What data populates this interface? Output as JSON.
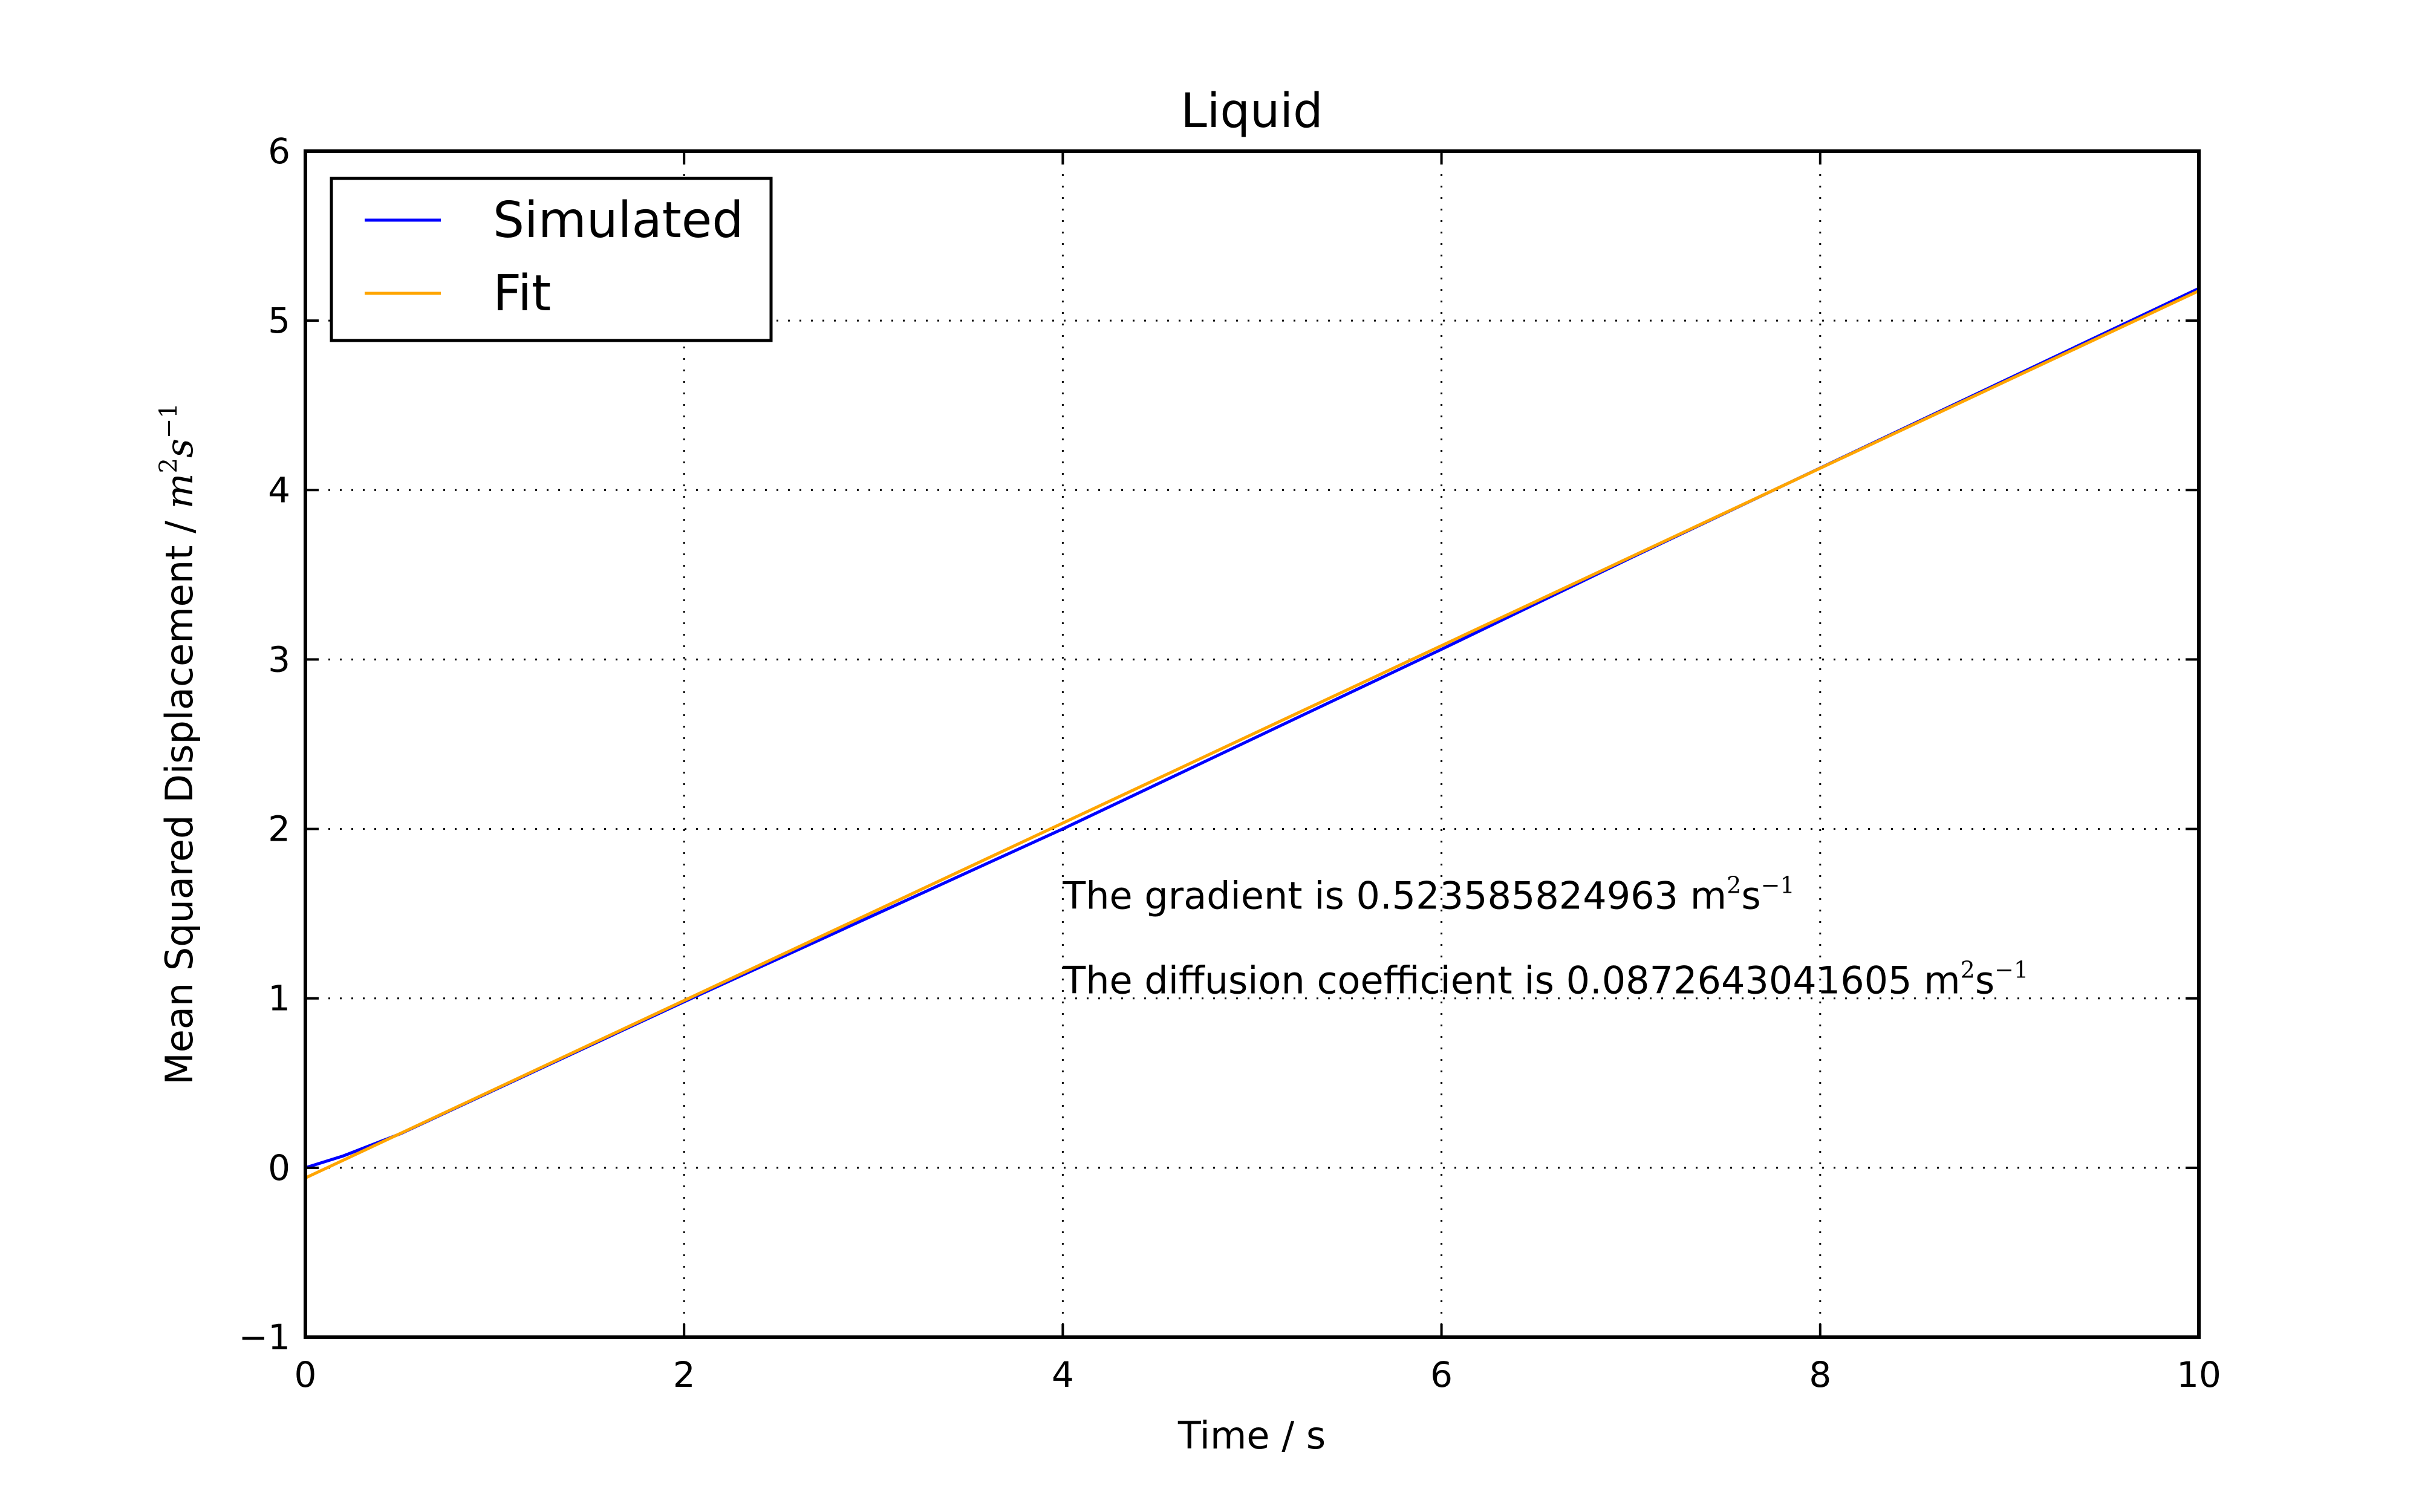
{
  "chart_data": {
    "type": "line",
    "title": "Liquid",
    "xlabel": "Time / s",
    "ylabel_text": "Mean Squared Displacement / ",
    "ylabel_unit": {
      "base1": "m",
      "exp1": "2",
      "base2": "s",
      "exp2": "−1"
    },
    "xlim": [
      0,
      10
    ],
    "ylim": [
      -1,
      6
    ],
    "xticks": [
      0,
      2,
      4,
      6,
      8,
      10
    ],
    "xtick_labels": [
      "0",
      "2",
      "4",
      "6",
      "8",
      "10"
    ],
    "yticks": [
      -1,
      0,
      1,
      2,
      3,
      4,
      5,
      6
    ],
    "ytick_labels": [
      "−1",
      "0",
      "1",
      "2",
      "3",
      "4",
      "5",
      "6"
    ],
    "grid": true,
    "legend_position": "upper-left",
    "series": [
      {
        "name": "Simulated",
        "color": "#0000ff",
        "x": [
          0,
          0.2,
          0.5,
          1,
          2,
          3,
          4,
          5,
          6,
          7,
          8,
          9,
          10
        ],
        "y": [
          0,
          0.07,
          0.2,
          0.46,
          0.98,
          1.49,
          2.0,
          2.53,
          3.06,
          3.6,
          4.13,
          4.66,
          5.19
        ]
      },
      {
        "name": "Fit",
        "color": "#ffa500",
        "x": [
          0,
          10
        ],
        "y": [
          -0.06,
          5.176
        ]
      }
    ],
    "annotations": [
      {
        "text": "The gradient is 0.523585824963 m",
        "sup1": "2",
        "mid": "s",
        "sup2": "−1",
        "x": 4,
        "y": 1.5
      },
      {
        "text": "The diffusion coefficient is 0.0872643041605 m",
        "sup1": "2",
        "mid": "s",
        "sup2": "−1",
        "x": 4,
        "y": 1.0
      }
    ]
  }
}
